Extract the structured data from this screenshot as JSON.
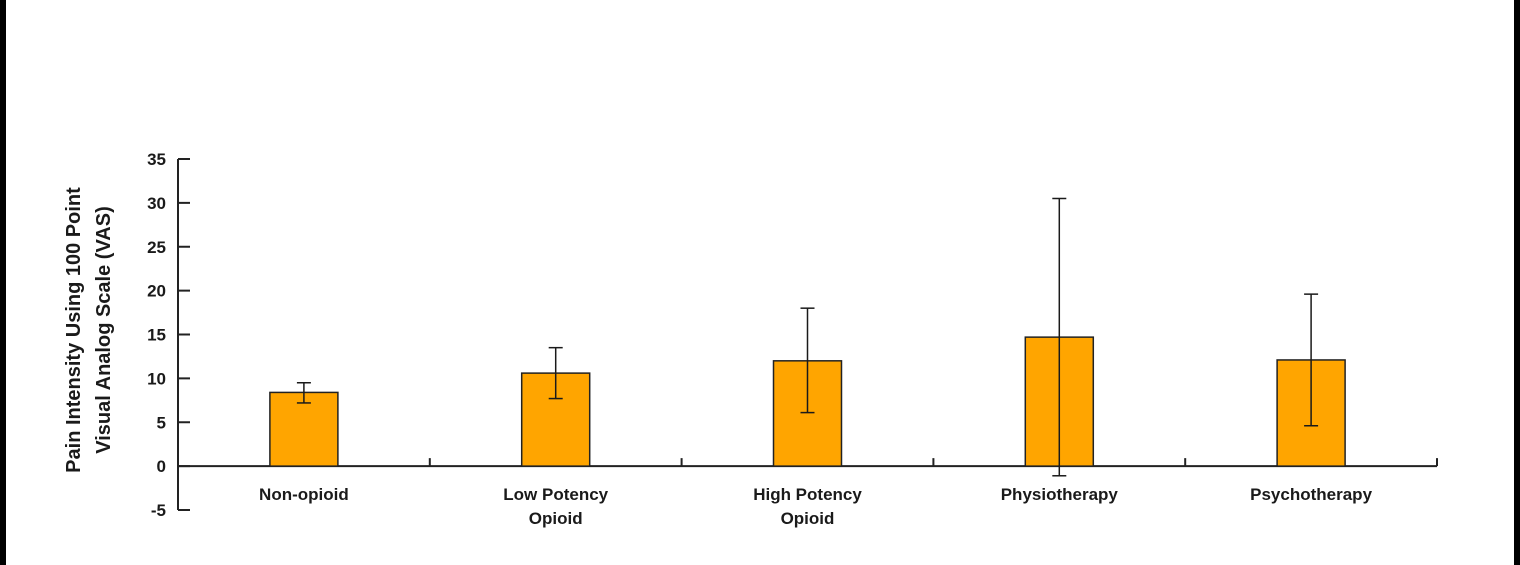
{
  "chart_data": {
    "type": "bar",
    "categories": [
      [
        "Non-opioid"
      ],
      [
        "Low Potency",
        "Opioid"
      ],
      [
        "High Potency",
        "Opioid"
      ],
      [
        "Physiotherapy"
      ],
      [
        "Psychotherapy"
      ]
    ],
    "values": [
      8.4,
      10.6,
      12.0,
      14.7,
      12.1
    ],
    "error_upper": [
      9.5,
      13.5,
      18.0,
      30.5,
      19.6
    ],
    "error_lower": [
      7.2,
      7.7,
      6.1,
      -1.1,
      4.6
    ],
    "ylabel": [
      "Pain Intensity Using 100 Point",
      "Visual Analog Scale (VAS)"
    ],
    "xlabel": "",
    "ylim": [
      -5,
      35
    ],
    "yticks": [
      -5,
      0,
      5,
      10,
      15,
      20,
      25,
      30,
      35
    ],
    "grid": false,
    "bar_color": "#FFA500",
    "bar_edge_color": "#222222"
  }
}
